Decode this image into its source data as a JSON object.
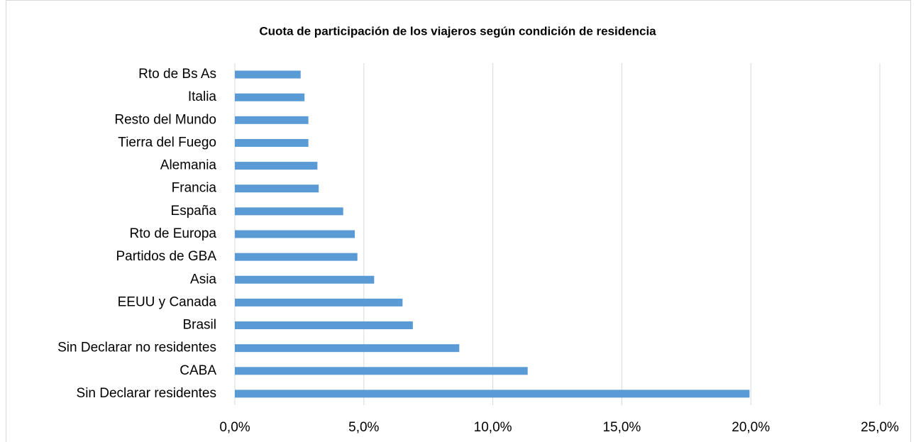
{
  "chart_data": {
    "type": "bar",
    "orientation": "horizontal",
    "title": "Cuota de participación de los viajeros según condición de residencia",
    "categories": [
      "Rto de Bs As",
      "Italia",
      "Resto del Mundo",
      "Tierra del Fuego",
      "Alemania",
      "Francia",
      "España",
      "Rto de Europa",
      "Partidos de GBA",
      "Asia",
      "EEUU y Canada",
      "Brasil",
      "Sin Declarar no residentes",
      "CABA",
      "Sin Declarar residentes"
    ],
    "values": [
      2.55,
      2.7,
      2.85,
      2.85,
      3.2,
      3.25,
      4.2,
      4.65,
      4.75,
      5.4,
      6.5,
      6.9,
      8.7,
      11.35,
      19.95
    ],
    "color": "#5b9bd5",
    "xlim": [
      0,
      25
    ],
    "xticks": [
      {
        "value": 0,
        "label": "0,0%"
      },
      {
        "value": 5,
        "label": "5,0%"
      },
      {
        "value": 10,
        "label": "10,0%"
      },
      {
        "value": 15,
        "label": "15,0%"
      },
      {
        "value": 20,
        "label": "20,0%"
      },
      {
        "value": 25,
        "label": "25,0%"
      }
    ],
    "grid": true
  }
}
